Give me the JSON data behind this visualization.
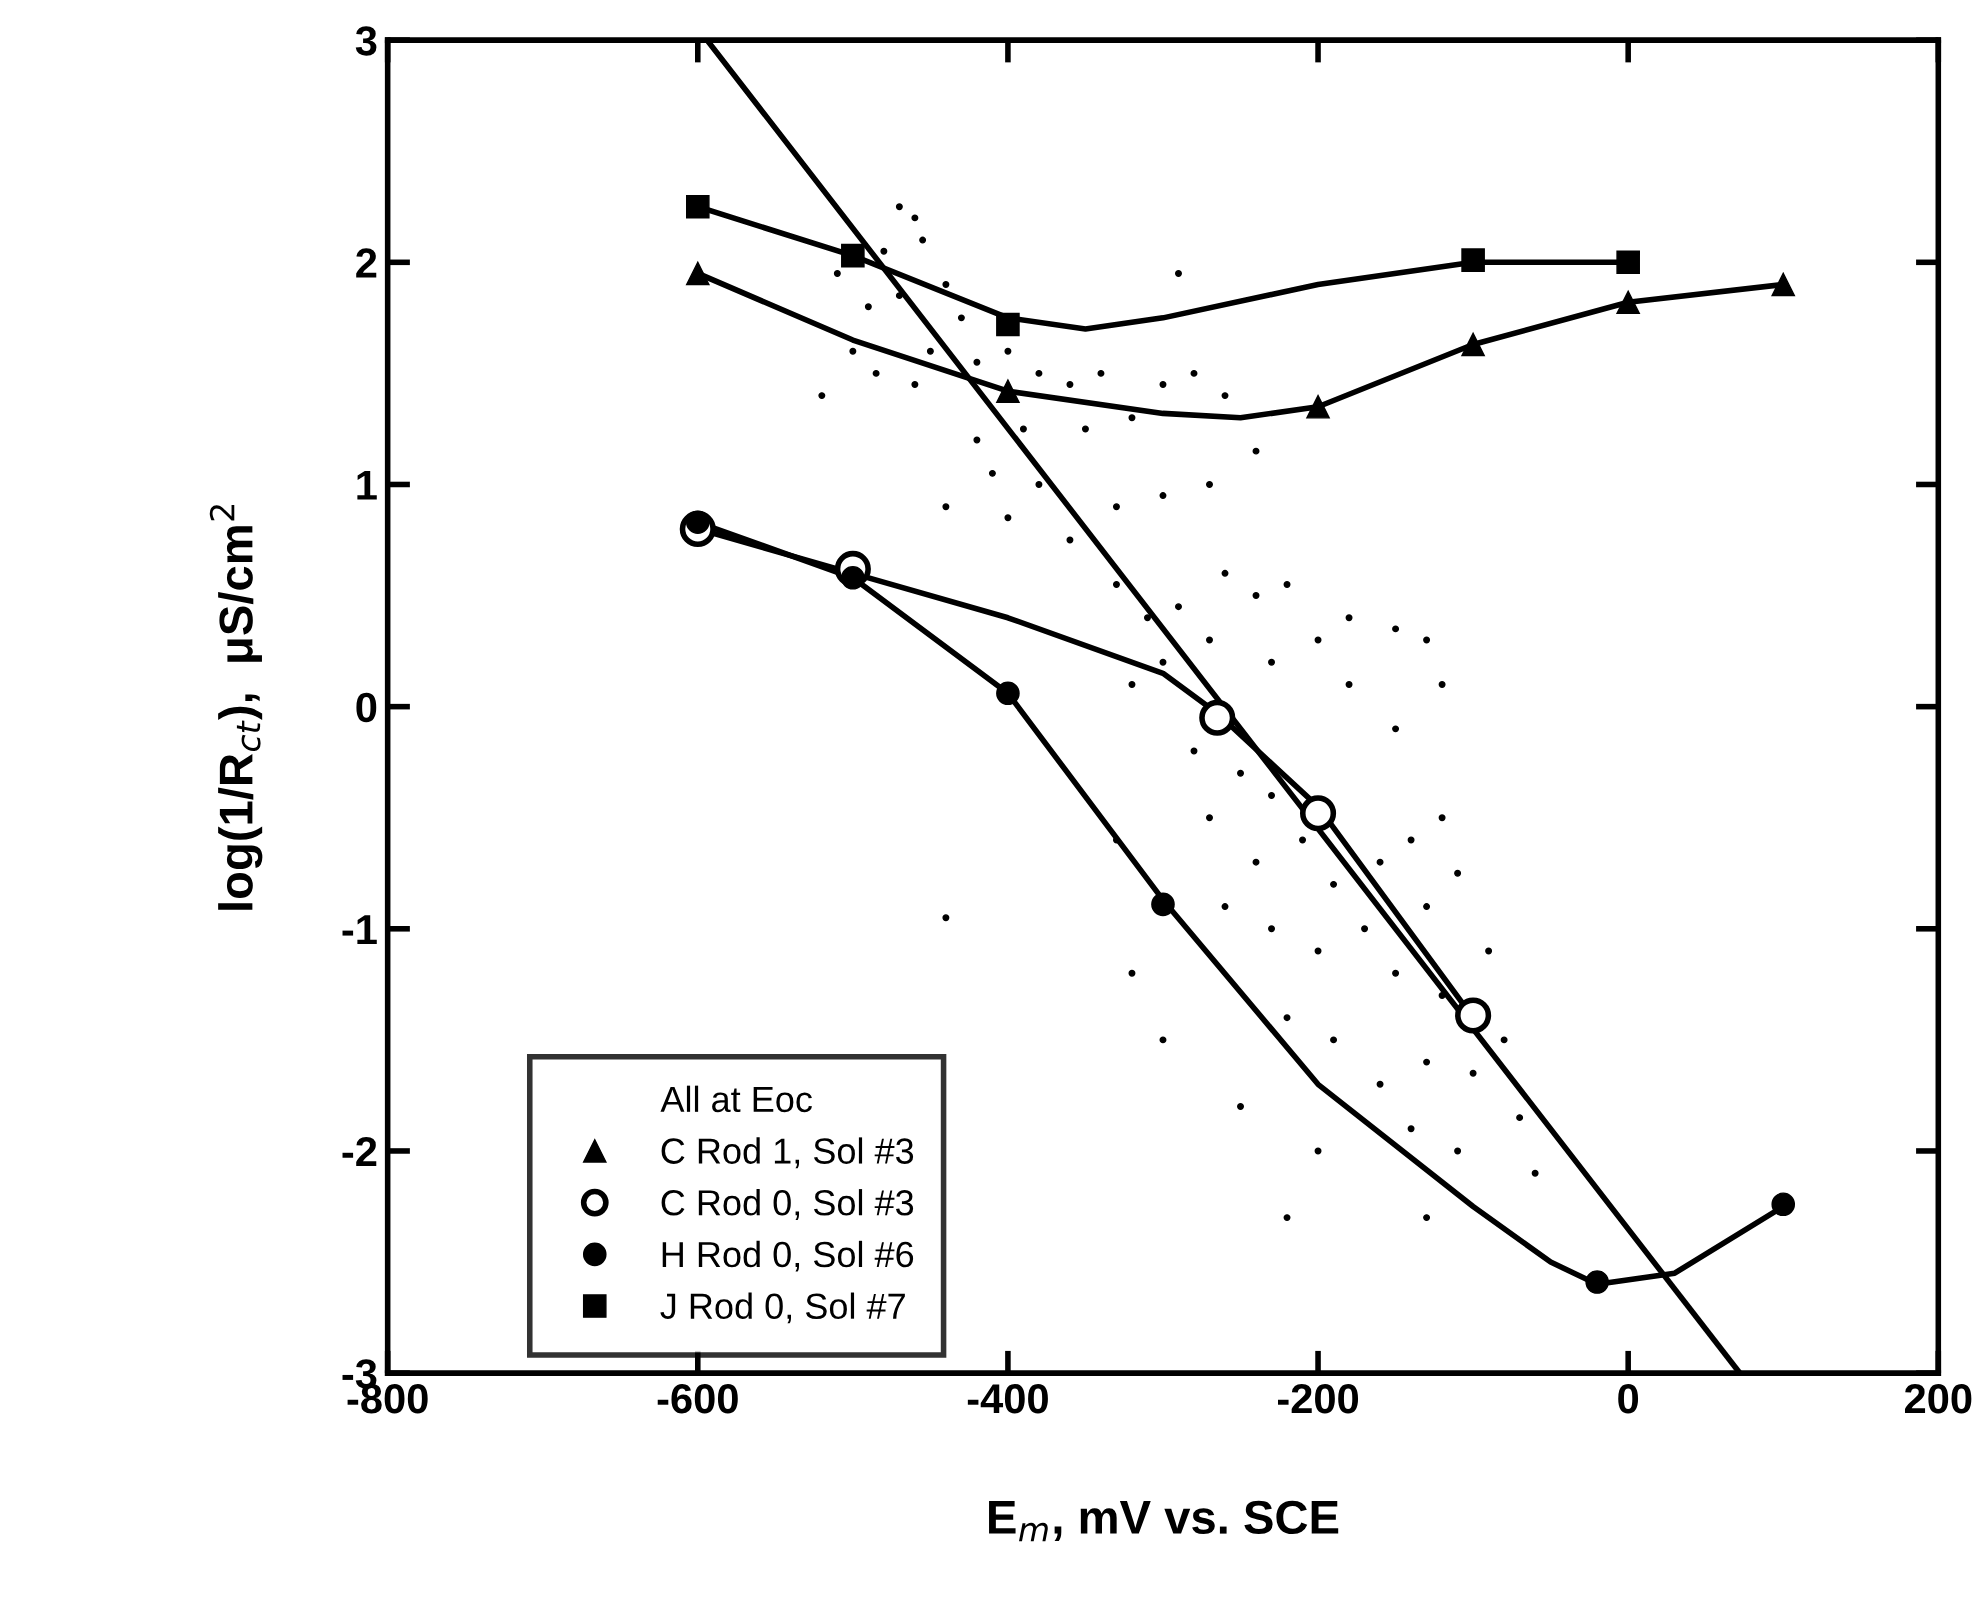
{
  "chart_data": {
    "type": "scatter",
    "xlabel": "E$_{m}$, mV vs. SCE",
    "ylabel": "log(1/R$_{ct}$),  μS/cm$^{2}$",
    "legend_title": "All at Eoc",
    "legend": "bottom left",
    "grid": false,
    "xlim": [
      -800,
      200
    ],
    "xticks": [
      -800,
      -600,
      -400,
      -200,
      0,
      200
    ],
    "ylim": [
      -3,
      3
    ],
    "yticks": [
      -3,
      -2,
      -1,
      0,
      1,
      2,
      3
    ],
    "series": [
      {
        "marker": "circle",
        "color": "#000000",
        "x": [
          -470,
          -460,
          -455,
          -480,
          -510,
          -490,
          -470,
          -440,
          -430,
          -450,
          -500,
          -520,
          -485,
          -460,
          -420,
          -400,
          -380,
          -360,
          -340,
          -300,
          -280,
          -260,
          -320,
          -350,
          -390,
          -420,
          -410,
          -380,
          -440,
          -400,
          -360,
          -330,
          -300,
          -270,
          -240,
          -290,
          -330,
          -310,
          -290,
          -260,
          -240,
          -220,
          -200,
          -180,
          -150,
          -130,
          -120,
          -150,
          -180,
          -230,
          -270,
          -300,
          -320,
          -280,
          -250,
          -230,
          -270,
          -240,
          -210,
          -190,
          -160,
          -140,
          -120,
          -110,
          -130,
          -170,
          -200,
          -230,
          -260,
          -150,
          -120,
          -90,
          -80,
          -100,
          -130,
          -160,
          -190,
          -220,
          -250,
          -200,
          -140,
          -110,
          -70,
          -60,
          -220,
          -130,
          -300,
          -320,
          -330,
          -440
        ],
        "values": [
          2.25,
          2.2,
          2.1,
          2.05,
          1.95,
          1.8,
          1.85,
          1.9,
          1.75,
          1.6,
          1.6,
          1.4,
          1.5,
          1.45,
          1.55,
          1.6,
          1.5,
          1.45,
          1.5,
          1.45,
          1.5,
          1.4,
          1.3,
          1.25,
          1.25,
          1.2,
          1.05,
          1.0,
          0.9,
          0.85,
          0.75,
          0.9,
          0.95,
          1.0,
          1.15,
          1.95,
          0.55,
          0.4,
          0.45,
          0.6,
          0.5,
          0.55,
          0.3,
          0.4,
          0.35,
          0.3,
          0.1,
          -0.1,
          0.1,
          0.2,
          0.3,
          0.2,
          0.1,
          -0.2,
          -0.3,
          -0.4,
          -0.5,
          -0.7,
          -0.6,
          -0.8,
          -0.7,
          -0.6,
          -0.5,
          -0.75,
          -0.9,
          -1.0,
          -1.1,
          -1.0,
          -0.9,
          -1.2,
          -1.3,
          -1.1,
          -1.5,
          -1.65,
          -1.6,
          -1.7,
          -1.5,
          -1.4,
          -1.8,
          -2.0,
          -1.9,
          -2.0,
          -1.85,
          -2.1,
          -2.3,
          -2.3,
          -1.5,
          -1.2,
          -0.6,
          -0.95
        ]
      },
      {
        "type": "line",
        "marker": "none",
        "color": "#000000",
        "x": [
          -594,
          72
        ],
        "values": [
          3,
          -3
        ]
      },
      {
        "type": "line",
        "marker": "none",
        "color": "#000000",
        "x": [
          -600,
          -500,
          -400,
          -350,
          -300,
          -200,
          -100,
          0
        ],
        "values": [
          2.25,
          2.03,
          1.75,
          1.7,
          1.75,
          1.9,
          2.0,
          2.0
        ]
      },
      {
        "type": "line",
        "marker": "none",
        "color": "#000000",
        "x": [
          -600,
          -500,
          -400,
          -300,
          -250,
          -200,
          -100,
          0,
          100
        ],
        "values": [
          1.95,
          1.65,
          1.42,
          1.32,
          1.3,
          1.35,
          1.63,
          1.82,
          1.9
        ]
      },
      {
        "type": "line",
        "marker": "none",
        "color": "#000000",
        "x": [
          -600,
          -500,
          -400,
          -300,
          -265,
          -200,
          -100
        ],
        "values": [
          0.8,
          0.6,
          0.4,
          0.15,
          -0.03,
          -0.45,
          -1.4
        ]
      },
      {
        "type": "line",
        "marker": "none",
        "color": "#000000",
        "x": [
          -600,
          -500,
          -400,
          -300,
          -200,
          -100,
          -50,
          -20,
          30,
          100
        ],
        "values": [
          0.83,
          0.58,
          0.06,
          -0.87,
          -1.7,
          -2.25,
          -2.5,
          -2.6,
          -2.55,
          -2.25
        ]
      },
      {
        "name": "C Rod 1, Sol #3",
        "marker": "triangle",
        "color": "#000000",
        "x": [
          -600,
          -400,
          -200,
          -100,
          0,
          100
        ],
        "values": [
          1.95,
          1.42,
          1.35,
          1.63,
          1.82,
          1.9
        ]
      },
      {
        "name": "C Rod 0, Sol #3",
        "marker": "circle",
        "color": "#ffffff",
        "x": [
          -600,
          -500,
          -265,
          -200,
          -100
        ],
        "values": [
          0.8,
          0.62,
          -0.05,
          -0.48,
          -1.39
        ]
      },
      {
        "name": "H Rod 0, Sol #6",
        "marker": "circle",
        "color": "#000000",
        "x": [
          -600,
          -500,
          -400,
          -300,
          -20,
          100
        ],
        "values": [
          0.83,
          0.58,
          0.06,
          -0.89,
          -2.59,
          -2.24
        ]
      },
      {
        "name": "J Rod 0, Sol #7",
        "marker": "square",
        "color": "#000000",
        "x": [
          -600,
          -500,
          -400,
          -100,
          0
        ],
        "values": [
          2.25,
          2.03,
          1.72,
          2.01,
          2.0
        ]
      }
    ]
  }
}
